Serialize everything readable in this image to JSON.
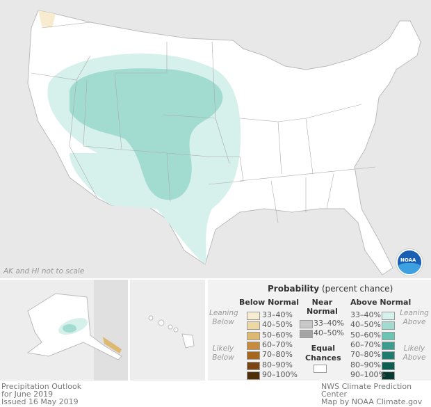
{
  "map": {
    "note": "AK and HI not to scale",
    "logo": "NOAA"
  },
  "legend": {
    "title": "Probability",
    "title_sub": "(percent chance)",
    "below": {
      "heading": "Below Normal",
      "leaning": "Leaning Below",
      "likely": "Likely Below",
      "items": [
        {
          "label": "33–40%",
          "color": "#f7ecd0"
        },
        {
          "label": "40–50%",
          "color": "#efd7a2"
        },
        {
          "label": "50–60%",
          "color": "#dcb870"
        },
        {
          "label": "60–70%",
          "color": "#c68b3c"
        },
        {
          "label": "70–80%",
          "color": "#a6661d"
        },
        {
          "label": "80–90%",
          "color": "#7a4510"
        },
        {
          "label": "90–100%",
          "color": "#4f2d07"
        }
      ]
    },
    "near": {
      "heading1": "Near",
      "heading2": "Normal",
      "items": [
        {
          "label": "33–40%",
          "color": "#c8c8c8"
        },
        {
          "label": "40–50%",
          "color": "#a4a4a4"
        }
      ]
    },
    "equal": {
      "line1": "Equal",
      "line2": "Chances",
      "color": "#ffffff"
    },
    "above": {
      "heading": "Above Normal",
      "leaning": "Leaning Above",
      "likely": "Likely Above",
      "items": [
        {
          "label": "33–40%",
          "color": "#d6f0eb"
        },
        {
          "label": "40–50%",
          "color": "#a2dcd1"
        },
        {
          "label": "50–60%",
          "color": "#6cc4b4"
        },
        {
          "label": "60–70%",
          "color": "#3c9c90"
        },
        {
          "label": "70–80%",
          "color": "#1f7b6f"
        },
        {
          "label": "80–90%",
          "color": "#0d5e52"
        },
        {
          "label": "90–100%",
          "color": "#053a30"
        }
      ]
    }
  },
  "caption": {
    "line1": "Precipitation Outlook",
    "line2": "for June 2019",
    "line3": "Issued 16 May 2019",
    "credit1": "NWS Climate Prediction Center",
    "credit2": "Map by NOAA Climate.gov"
  }
}
